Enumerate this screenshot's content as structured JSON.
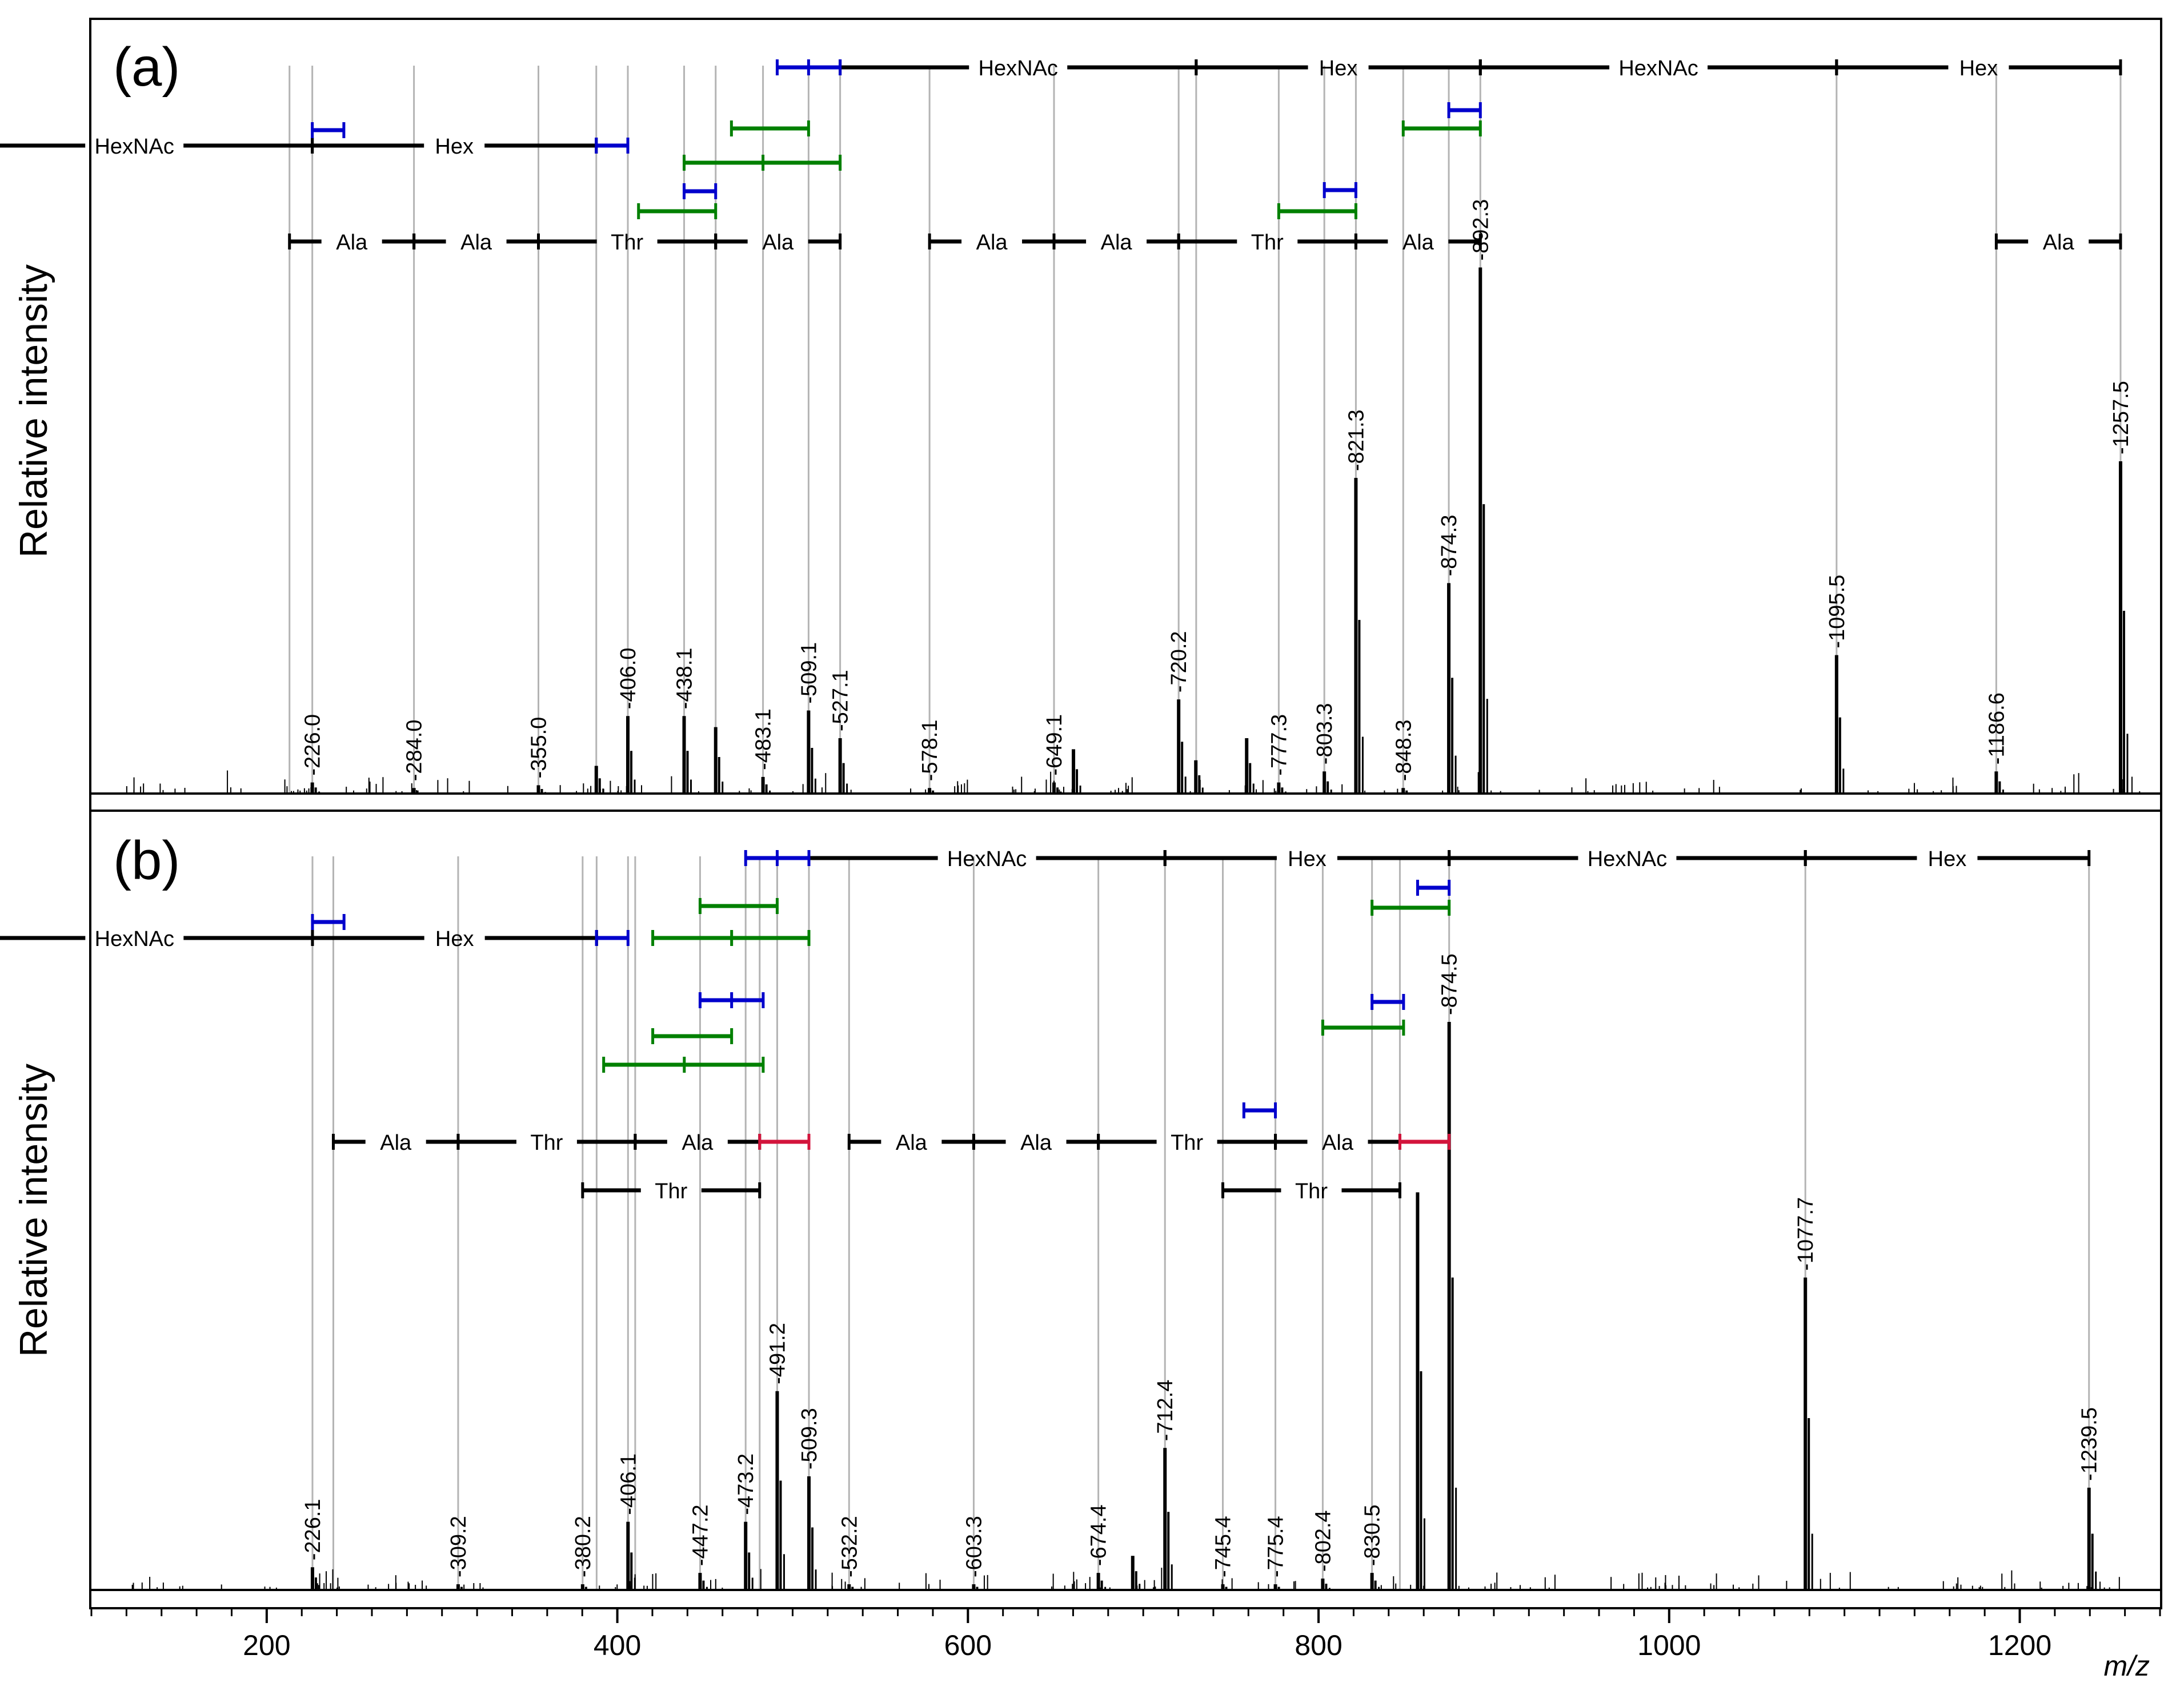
{
  "chart_data": {
    "type": "line",
    "title": "",
    "xlabel": "m/z",
    "ylabel": "Relative intensity",
    "xlim": [
      100,
      1280
    ],
    "x_ticks": [
      "200",
      "400",
      "600",
      "800",
      "1000",
      "1200"
    ],
    "colors": {
      "blue": "#0000cc",
      "green": "#008000",
      "red": "#d3143c",
      "black": "#000000",
      "guide": "#b4b4b4"
    },
    "panels": [
      {
        "label": "(a)",
        "ylabel": "Relative intensity",
        "peaks": [
          {
            "mz": 226.0,
            "rel": 0.02,
            "label": "226.0"
          },
          {
            "mz": 284.0,
            "rel": 0.01,
            "label": "284.0"
          },
          {
            "mz": 355.0,
            "rel": 0.015,
            "label": "355.0"
          },
          {
            "mz": 388.0,
            "rel": 0.05
          },
          {
            "mz": 406.0,
            "rel": 0.14,
            "label": "406.0"
          },
          {
            "mz": 438.1,
            "rel": 0.14,
            "label": "438.1"
          },
          {
            "mz": 456.1,
            "rel": 0.12
          },
          {
            "mz": 483.1,
            "rel": 0.03,
            "label": "483.1"
          },
          {
            "mz": 509.1,
            "rel": 0.15,
            "label": "509.1"
          },
          {
            "mz": 527.1,
            "rel": 0.1,
            "label": "527.1"
          },
          {
            "mz": 578.1,
            "rel": 0.01,
            "label": "578.1"
          },
          {
            "mz": 649.1,
            "rel": 0.02,
            "label": "649.1"
          },
          {
            "mz": 660.2,
            "rel": 0.08
          },
          {
            "mz": 720.2,
            "rel": 0.17,
            "label": "720.2"
          },
          {
            "mz": 730.0,
            "rel": 0.06
          },
          {
            "mz": 759.0,
            "rel": 0.1
          },
          {
            "mz": 777.3,
            "rel": 0.02,
            "label": "777.3"
          },
          {
            "mz": 803.3,
            "rel": 0.04,
            "label": "803.3"
          },
          {
            "mz": 821.3,
            "rel": 0.57,
            "label": "821.3"
          },
          {
            "mz": 848.3,
            "rel": 0.01,
            "label": "848.3"
          },
          {
            "mz": 874.3,
            "rel": 0.38,
            "label": "874.3"
          },
          {
            "mz": 892.3,
            "rel": 0.95,
            "label": "892.3"
          },
          {
            "mz": 1095.5,
            "rel": 0.25,
            "label": "1095.5"
          },
          {
            "mz": 1186.6,
            "rel": 0.04,
            "label": "1186.6"
          },
          {
            "mz": 1257.5,
            "rel": 0.6,
            "label": "1257.5"
          }
        ],
        "ladder_top": [
          {
            "from": 527.1,
            "to": 730.2,
            "label": "HexNAc"
          },
          {
            "from": 730.2,
            "to": 892.3,
            "label": "Hex"
          },
          {
            "from": 892.3,
            "to": 1095.5,
            "label": "HexNAc"
          },
          {
            "from": 1095.5,
            "to": 1257.5,
            "label": "Hex"
          }
        ],
        "ladder_left": [
          {
            "from": 23.0,
            "to": 226.0,
            "label": "HexNAc"
          },
          {
            "from": 226.0,
            "to": 388.0,
            "label": "Hex"
          }
        ],
        "sequence": [
          {
            "from": 213.0,
            "to": 284.0,
            "label": "Ala"
          },
          {
            "from": 284.0,
            "to": 355.0,
            "label": "Ala"
          },
          {
            "from": 355.0,
            "to": 456.1,
            "label": "Thr"
          },
          {
            "from": 456.1,
            "to": 527.1,
            "label": "Ala"
          },
          {
            "from": 578.1,
            "to": 649.1,
            "label": "Ala"
          },
          {
            "from": 649.1,
            "to": 720.2,
            "label": "Ala"
          },
          {
            "from": 720.2,
            "to": 821.3,
            "label": "Thr"
          },
          {
            "from": 821.3,
            "to": 892.3,
            "label": "Ala"
          },
          {
            "from": 1186.6,
            "to": 1257.5,
            "label": "Ala"
          }
        ]
      },
      {
        "label": "(b)",
        "ylabel": "Relative intensity",
        "peaks": [
          {
            "mz": 226.1,
            "rel": 0.04,
            "label": "226.1"
          },
          {
            "mz": 309.2,
            "rel": 0.01,
            "label": "309.2"
          },
          {
            "mz": 380.2,
            "rel": 0.01,
            "label": "380.2"
          },
          {
            "mz": 406.1,
            "rel": 0.12,
            "label": "406.1"
          },
          {
            "mz": 447.2,
            "rel": 0.03,
            "label": "447.2"
          },
          {
            "mz": 473.2,
            "rel": 0.12,
            "label": "473.2"
          },
          {
            "mz": 491.2,
            "rel": 0.35,
            "label": "491.2"
          },
          {
            "mz": 509.3,
            "rel": 0.2,
            "label": "509.3"
          },
          {
            "mz": 532.2,
            "rel": 0.01,
            "label": "532.2"
          },
          {
            "mz": 603.3,
            "rel": 0.01,
            "label": "603.3"
          },
          {
            "mz": 674.4,
            "rel": 0.03,
            "label": "674.4"
          },
          {
            "mz": 694.0,
            "rel": 0.06
          },
          {
            "mz": 712.4,
            "rel": 0.25,
            "label": "712.4"
          },
          {
            "mz": 745.4,
            "rel": 0.01,
            "label": "745.4"
          },
          {
            "mz": 775.4,
            "rel": 0.01,
            "label": "775.4"
          },
          {
            "mz": 802.4,
            "rel": 0.02,
            "label": "802.4"
          },
          {
            "mz": 830.5,
            "rel": 0.03,
            "label": "830.5"
          },
          {
            "mz": 856.5,
            "rel": 0.7
          },
          {
            "mz": 874.5,
            "rel": 1.0,
            "label": "874.5"
          },
          {
            "mz": 1077.7,
            "rel": 0.55,
            "label": "1077.7"
          },
          {
            "mz": 1239.5,
            "rel": 0.18,
            "label": "1239.5"
          }
        ],
        "ladder_top": [
          {
            "from": 509.3,
            "to": 712.4,
            "label": "HexNAc"
          },
          {
            "from": 712.4,
            "to": 874.5,
            "label": "Hex"
          },
          {
            "from": 874.5,
            "to": 1077.7,
            "label": "HexNAc"
          },
          {
            "from": 1077.7,
            "to": 1239.5,
            "label": "Hex"
          }
        ],
        "ladder_left": [
          {
            "from": 23.0,
            "to": 226.1,
            "label": "HexNAc"
          },
          {
            "from": 226.1,
            "to": 388.2,
            "label": "Hex"
          }
        ],
        "sequence": [
          {
            "from": 238.0,
            "to": 309.2,
            "label": "Ala"
          },
          {
            "from": 309.2,
            "to": 410.2,
            "label": "Thr"
          },
          {
            "from": 410.2,
            "to": 481.2,
            "label": "Ala"
          },
          {
            "from": 532.2,
            "to": 603.3,
            "label": "Ala"
          },
          {
            "from": 603.3,
            "to": 674.4,
            "label": "Ala"
          },
          {
            "from": 674.4,
            "to": 775.4,
            "label": "Thr"
          },
          {
            "from": 775.4,
            "to": 846.4,
            "label": "Ala"
          }
        ],
        "sequence_alt": [
          {
            "from": 380.2,
            "to": 481.2,
            "label": "Thr"
          },
          {
            "from": 745.4,
            "to": 846.4,
            "label": "Thr"
          }
        ]
      }
    ]
  }
}
